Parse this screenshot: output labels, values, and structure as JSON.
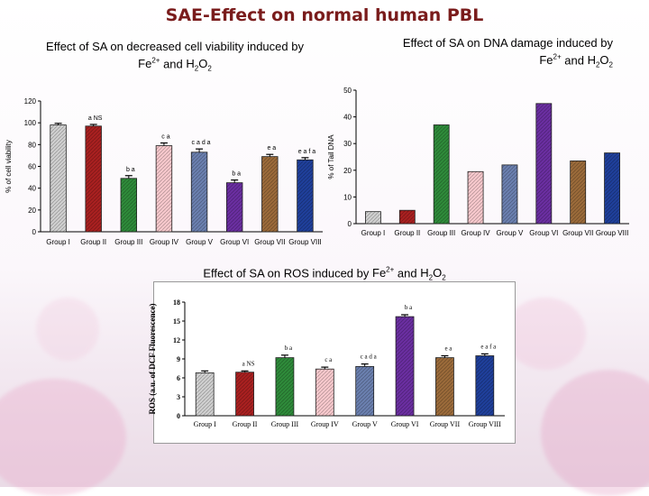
{
  "slide": {
    "title": "SAE-Effect on normal human PBL",
    "title_color": "#7a1c1c"
  },
  "chart_data": [
    {
      "type": "bar",
      "title_text": "Effect of SA on decreased cell viability induced by",
      "title_line2": "and",
      "title_ions": [
        {
          "base": "Fe",
          "sup": "2+",
          "sub": ""
        },
        {
          "base": "H",
          "sup": "",
          "sub": "2"
        },
        {
          "base": "O",
          "sup": "",
          "sub": "2"
        }
      ],
      "ylabel": "% of cell viability",
      "ylim": [
        0,
        120
      ],
      "yticks": [
        "0",
        "20",
        "40",
        "60",
        "80",
        "100",
        "120"
      ],
      "categories": [
        "Group I",
        "Group II",
        "Group III",
        "Group IV",
        "Group V",
        "Group VI",
        "Group VII",
        "Group VIII"
      ],
      "values": [
        98,
        97,
        49,
        79,
        73,
        45,
        69,
        66
      ],
      "errors": [
        1.5,
        1.5,
        2.5,
        2.5,
        3.0,
        2.5,
        2.0,
        2.0
      ],
      "annotations": [
        "",
        "a NS",
        "b a",
        "c a",
        "c a d a",
        "b a",
        "e a",
        "e a f a"
      ],
      "colors": [
        "#cfcfcf",
        "#a82020",
        "#2e8a3a",
        "#f6c8cc",
        "#6a7fae",
        "#6a2ea0",
        "#9a6a3a",
        "#1f3f9a"
      ]
    },
    {
      "type": "bar",
      "title_text": "Effect of SA on DNA damage induced by",
      "title_line2": "and",
      "title_ions": [
        {
          "base": "Fe",
          "sup": "2+",
          "sub": ""
        },
        {
          "base": "H",
          "sup": "",
          "sub": "2"
        },
        {
          "base": "O",
          "sup": "",
          "sub": "2"
        }
      ],
      "ylabel": "% of Tail DNA",
      "ylim": [
        0,
        50
      ],
      "yticks": [
        "0",
        "10",
        "20",
        "30",
        "40",
        "50"
      ],
      "categories": [
        "Group I",
        "Group II",
        "Group III",
        "Group IV",
        "Group V",
        "Group VI",
        "Group VII",
        "Group VIII"
      ],
      "values": [
        4.5,
        5,
        37,
        19.5,
        22,
        45,
        23.5,
        26.5
      ],
      "colors": [
        "#cfcfcf",
        "#a82020",
        "#2e8a3a",
        "#f6c8cc",
        "#6a7fae",
        "#6a2ea0",
        "#9a6a3a",
        "#1f3f9a"
      ]
    },
    {
      "type": "bar",
      "title_text": "Effect of SA  on ROS induced by",
      "title_line2": "and",
      "title_ions": [
        {
          "base": "Fe",
          "sup": "2+",
          "sub": ""
        },
        {
          "base": "H",
          "sup": "",
          "sub": "2"
        },
        {
          "base": "O",
          "sup": "",
          "sub": "2"
        }
      ],
      "ylabel": "ROS (a.u. of DCF Fluorescence)",
      "ylim": [
        0,
        18
      ],
      "yticks": [
        "0",
        "3",
        "6",
        "9",
        "12",
        "15",
        "18"
      ],
      "categories": [
        "Group I",
        "Group II",
        "Group III",
        "Group IV",
        "Group V",
        "Group VI",
        "Group VII",
        "Group VIII"
      ],
      "values": [
        6.8,
        6.9,
        9.2,
        7.4,
        7.8,
        15.7,
        9.2,
        9.5
      ],
      "errors": [
        0.3,
        0.2,
        0.4,
        0.3,
        0.4,
        0.3,
        0.3,
        0.3
      ],
      "annotations": [
        "",
        "a NS",
        "b a",
        "c a",
        "c a d a",
        "b a",
        "e a",
        "e a f a"
      ],
      "colors": [
        "#cfcfcf",
        "#a82020",
        "#2e8a3a",
        "#f6c8cc",
        "#6a7fae",
        "#6a2ea0",
        "#9a6a3a",
        "#1f3f9a"
      ]
    }
  ]
}
